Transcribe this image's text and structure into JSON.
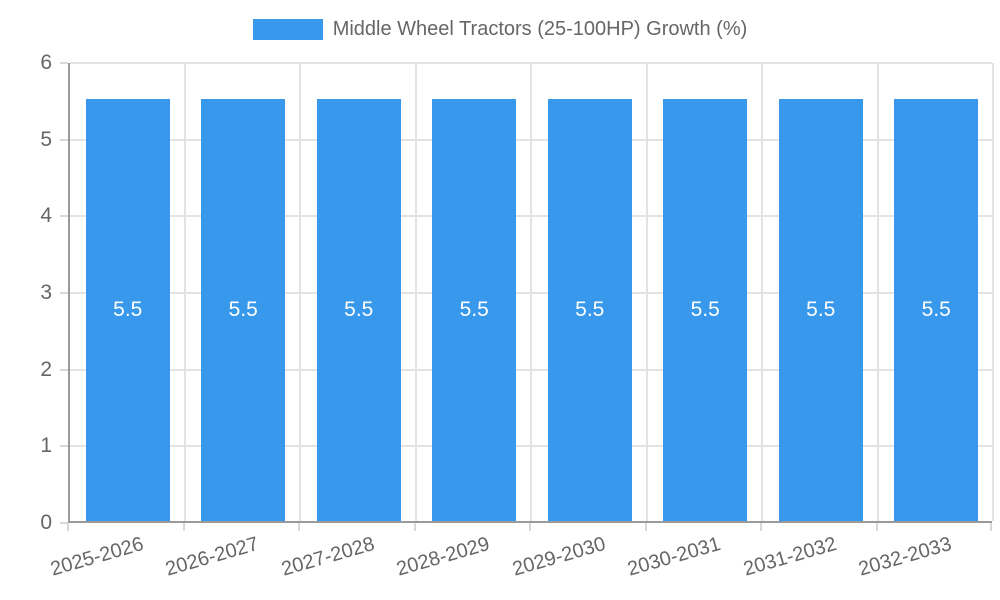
{
  "legend": {
    "label": "Middle Wheel Tractors (25-100HP) Growth (%)",
    "swatch_color": "#3899ec"
  },
  "chart_data": {
    "type": "bar",
    "title": "Middle Wheel Tractors (25-100HP) Growth (%)",
    "series_name": "Middle Wheel Tractors (25-100HP) Growth (%)",
    "categories": [
      "2025-2026",
      "2026-2027",
      "2027-2028",
      "2028-2029",
      "2029-2030",
      "2030-2031",
      "2031-2032",
      "2032-2033"
    ],
    "values": [
      5.5,
      5.5,
      5.5,
      5.5,
      5.5,
      5.5,
      5.5,
      5.5
    ],
    "value_labels": [
      "5.5",
      "5.5",
      "5.5",
      "5.5",
      "5.5",
      "5.5",
      "5.5",
      "5.5"
    ],
    "xlabel": "",
    "ylabel": "",
    "ylim": [
      0,
      6
    ],
    "yticks": [
      0,
      1,
      2,
      3,
      4,
      5,
      6
    ],
    "grid": true,
    "legend_position": "top",
    "bar_color": "#3899ec",
    "value_label_color": "#ffffff",
    "axis_text_color": "#666666",
    "gridline_color": "#e3e3e3",
    "axis_line_color": "#9a9a9a"
  }
}
